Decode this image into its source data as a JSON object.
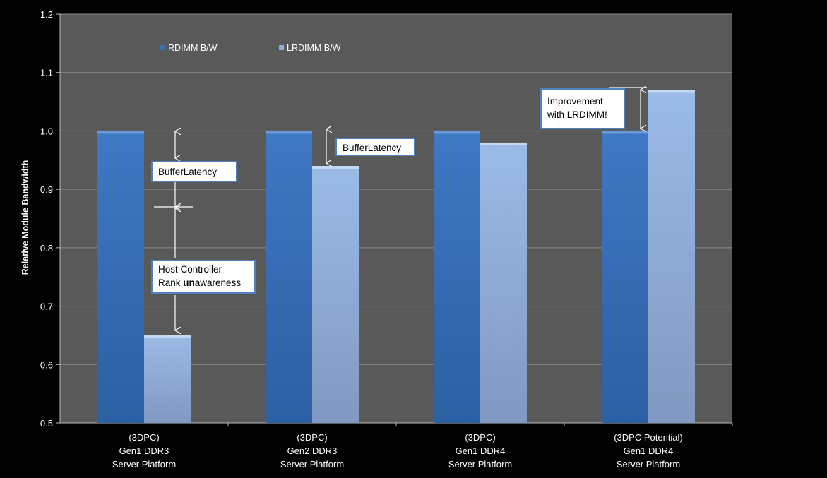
{
  "chart_data": {
    "type": "bar",
    "ylabel": "Relative Module Bandwidth",
    "ylim": [
      0.5,
      1.2
    ],
    "yticks": [
      "0.5",
      "0.6",
      "0.7",
      "0.8",
      "0.9",
      "1.0",
      "1.1",
      "1.2"
    ],
    "grid": true,
    "legend_placement": "top-left",
    "categories": [
      [
        "(3DPC)",
        "Gen1 DDR3",
        "Server Platform"
      ],
      [
        "(3DPC)",
        "Gen2 DDR3",
        "Server Platform"
      ],
      [
        "(3DPC)",
        "Gen1 DDR4",
        "Server Platform"
      ],
      [
        "(3DPC Potential)",
        "Gen1 DDR4",
        "Server Platform"
      ]
    ],
    "series": [
      {
        "name": "RDIMM B/W",
        "values": [
          1.0,
          1.0,
          1.0,
          1.0
        ],
        "color": "#3a6fb8"
      },
      {
        "name": "LRDIMM B/W",
        "values": [
          0.65,
          0.94,
          0.98,
          1.07
        ],
        "color": "#8eaedc"
      }
    ],
    "colors": {
      "background": "#000000",
      "plot_area": "#595959",
      "gridline": "#8a8a8a",
      "callout_border": "#4f81bd"
    }
  },
  "annotations": {
    "buffer_latency_1": "BufferLatency",
    "host_controller_line1": "Host Controller",
    "host_controller_rank": "Rank ",
    "host_controller_un": "un",
    "host_controller_awareness": "awareness",
    "buffer_latency_2": "BufferLatency",
    "improvement_line1": "Improvement",
    "improvement_line2": "with LRDIMM!"
  }
}
